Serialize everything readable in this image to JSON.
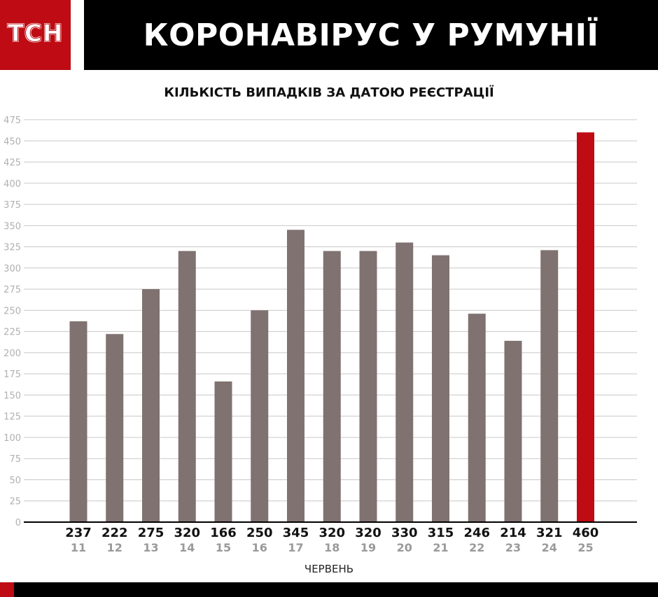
{
  "header": {
    "logo": "ТСН",
    "title": "КОРОНАВІРУС У РУМУНІЇ"
  },
  "chart_data": {
    "type": "bar",
    "title": "КІЛЬКІСТЬ ВИПАДКІВ ЗА ДАТОЮ РЕЄСТРАЦІЇ",
    "xlabel": "ЧЕРВЕНЬ",
    "ylabel": "",
    "ylim": [
      0,
      475
    ],
    "yticks": [
      0,
      25,
      50,
      75,
      100,
      125,
      150,
      175,
      200,
      225,
      250,
      275,
      300,
      325,
      350,
      375,
      400,
      425,
      450,
      475
    ],
    "grid": true,
    "categories": [
      "11",
      "12",
      "13",
      "14",
      "15",
      "16",
      "17",
      "18",
      "19",
      "20",
      "21",
      "22",
      "23",
      "24",
      "25"
    ],
    "values": [
      237,
      222,
      275,
      320,
      166,
      250,
      345,
      320,
      320,
      330,
      315,
      246,
      214,
      321,
      460
    ],
    "colors": {
      "bar": "#7f7270",
      "highlight": "#bf0b13",
      "grid": "#c8c8c8",
      "tick_label": "#b0b0b0",
      "value_label": "#111111",
      "category_label": "#9a9a9a"
    },
    "highlight_category": "25"
  }
}
